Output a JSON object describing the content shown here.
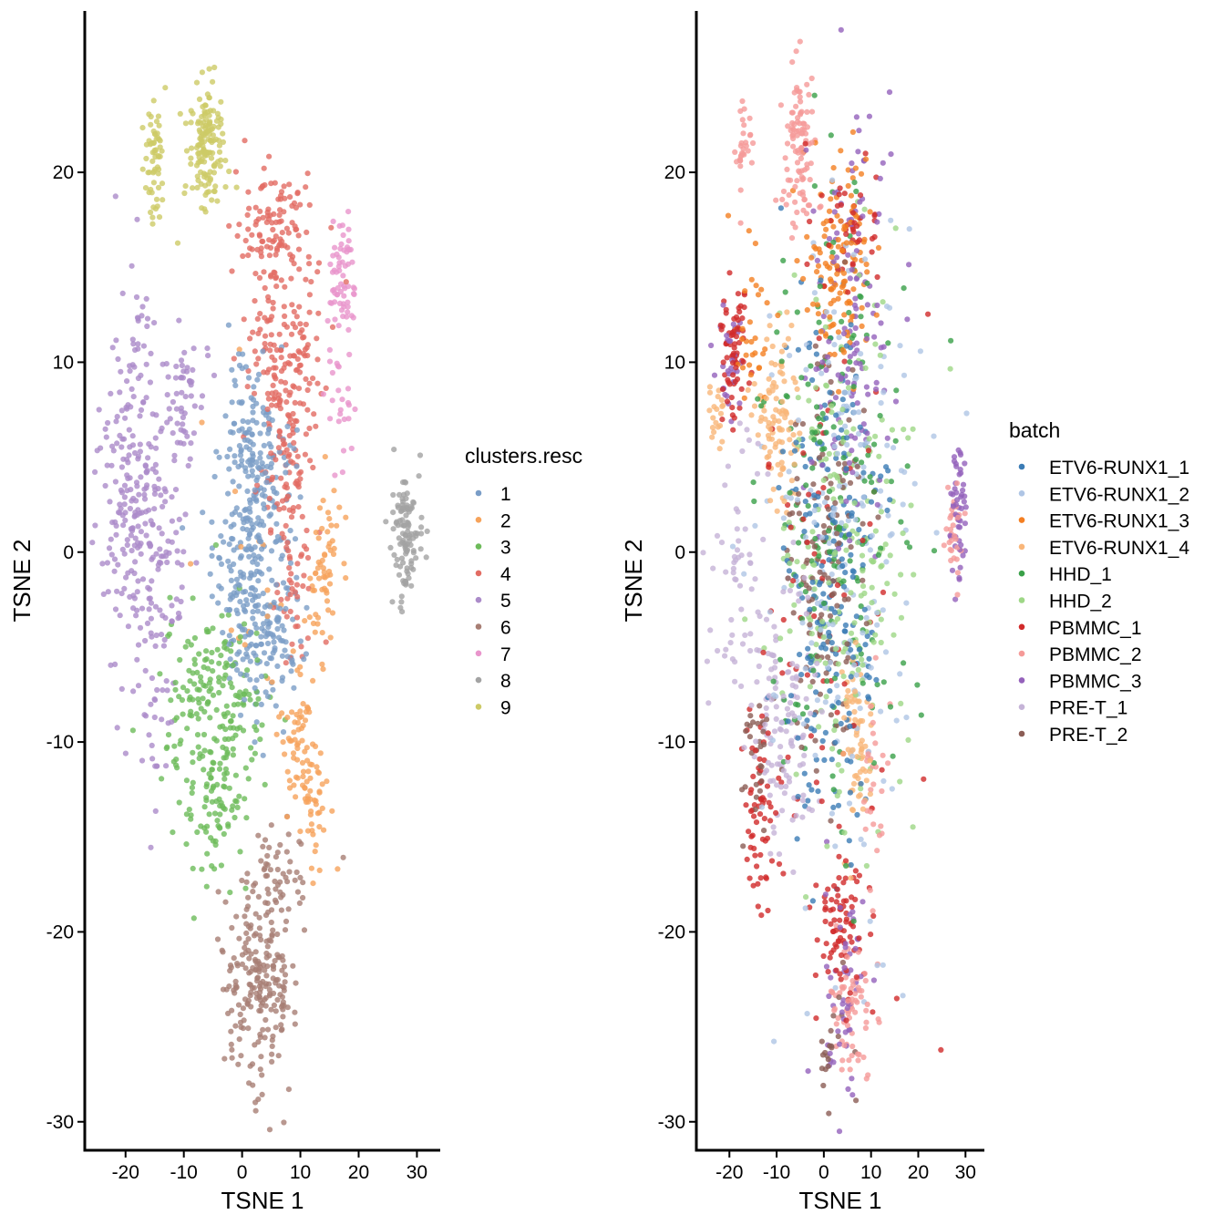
{
  "chart_data": [
    {
      "type": "scatter",
      "title": "",
      "xlabel": "TSNE 1",
      "ylabel": "TSNE 2",
      "xlim": [
        -27,
        34
      ],
      "ylim": [
        -31.5,
        28.5
      ],
      "x_ticks": [
        -20,
        -10,
        0,
        10,
        20,
        30
      ],
      "y_ticks": [
        -30,
        -20,
        -10,
        0,
        10,
        20
      ],
      "grid": false,
      "legend_position": "right",
      "legend_title": "clusters.resc",
      "groups": [
        {
          "name": "1",
          "color": "#7A9DC7",
          "clusters": [
            {
              "x": 2,
              "y": 0,
              "sx": 3.5,
              "sy": 3.5,
              "n": 260
            },
            {
              "x": 2.5,
              "y": 6.5,
              "sx": 2.5,
              "sy": 2,
              "n": 90
            },
            {
              "x": 3.5,
              "y": -5,
              "sx": 3.5,
              "sy": 1.6,
              "n": 80
            }
          ]
        },
        {
          "name": "2",
          "color": "#F6A35B",
          "clusters": [
            {
              "x": 14,
              "y": -1,
              "sx": 1.4,
              "sy": 2.5,
              "n": 60
            },
            {
              "x": 9.5,
              "y": -9.5,
              "sx": 1.5,
              "sy": 2,
              "n": 50
            },
            {
              "x": 12,
              "y": -12.5,
              "sx": 1.5,
              "sy": 2,
              "n": 50
            },
            {
              "x": 3,
              "y": -0.5,
              "sx": 6,
              "sy": 4,
              "n": 20
            }
          ]
        },
        {
          "name": "3",
          "color": "#6DBB5A",
          "clusters": [
            {
              "x": -4.5,
              "y": -8.5,
              "sx": 4.5,
              "sy": 2.8,
              "n": 210
            },
            {
              "x": -5,
              "y": -14.5,
              "sx": 2.5,
              "sy": 1.6,
              "n": 60
            }
          ]
        },
        {
          "name": "4",
          "color": "#E26C63",
          "clusters": [
            {
              "x": 6,
              "y": 17,
              "sx": 3.5,
              "sy": 1.6,
              "n": 110
            },
            {
              "x": 7,
              "y": 11,
              "sx": 3.5,
              "sy": 2.5,
              "n": 140
            },
            {
              "x": 8,
              "y": 4,
              "sx": 2.5,
              "sy": 2.8,
              "n": 100
            },
            {
              "x": 9,
              "y": -2,
              "sx": 1.5,
              "sy": 2,
              "n": 30
            }
          ]
        },
        {
          "name": "5",
          "color": "#AB8BC9",
          "clusters": [
            {
              "x": -19,
              "y": 4,
              "sx": 2.5,
              "sy": 4.5,
              "n": 200
            },
            {
              "x": -14,
              "y": -1,
              "sx": 2.5,
              "sy": 3.5,
              "n": 90
            },
            {
              "x": -10,
              "y": 7.5,
              "sx": 2,
              "sy": 2,
              "n": 60
            },
            {
              "x": -15,
              "y": -10,
              "sx": 1.2,
              "sy": 2,
              "n": 20
            }
          ]
        },
        {
          "name": "6",
          "color": "#A77E74",
          "clusters": [
            {
              "x": 3,
              "y": -22.5,
              "sx": 3,
              "sy": 2.6,
              "n": 220
            },
            {
              "x": 6,
              "y": -17,
              "sx": 3,
              "sy": 1.3,
              "n": 50
            }
          ]
        },
        {
          "name": "7",
          "color": "#E995CC",
          "clusters": [
            {
              "x": 17,
              "y": 14.5,
              "sx": 1.3,
              "sy": 1.4,
              "n": 60
            },
            {
              "x": 17,
              "y": 9,
              "sx": 1.5,
              "sy": 2.5,
              "n": 30
            }
          ]
        },
        {
          "name": "8",
          "color": "#A3A3A3",
          "clusters": [
            {
              "x": 28,
              "y": 1,
              "sx": 1.1,
              "sy": 1.8,
              "n": 110
            }
          ]
        },
        {
          "name": "9",
          "color": "#CDCA66",
          "clusters": [
            {
              "x": -6,
              "y": 21.5,
              "sx": 1.6,
              "sy": 1.7,
              "n": 150
            },
            {
              "x": -15,
              "y": 20.5,
              "sx": 0.9,
              "sy": 1.6,
              "n": 60
            }
          ]
        }
      ]
    },
    {
      "type": "scatter",
      "title": "",
      "xlabel": "TSNE 1",
      "ylabel": "TSNE 2",
      "xlim": [
        -27,
        34
      ],
      "ylim": [
        -31.5,
        28.5
      ],
      "x_ticks": [
        -20,
        -10,
        0,
        10,
        20,
        30
      ],
      "y_ticks": [
        -30,
        -20,
        -10,
        0,
        10,
        20
      ],
      "grid": false,
      "legend_position": "right",
      "legend_title": "batch",
      "groups": [
        {
          "name": "ETV6-RUNX1_1",
          "color": "#3B7CB5",
          "clusters": [
            {
              "x": 2,
              "y": -2,
              "sx": 5,
              "sy": 7,
              "n": 220
            }
          ]
        },
        {
          "name": "ETV6-RUNX1_2",
          "color": "#AFC5E5",
          "clusters": [
            {
              "x": 4,
              "y": 0,
              "sx": 8,
              "sy": 9,
              "n": 200
            }
          ]
        },
        {
          "name": "ETV6-RUNX1_3",
          "color": "#F47F22",
          "clusters": [
            {
              "x": 3,
              "y": 15,
              "sx": 3.5,
              "sy": 3,
              "n": 130
            },
            {
              "x": -15,
              "y": 12,
              "sx": 2,
              "sy": 2,
              "n": 30
            }
          ]
        },
        {
          "name": "ETV6-RUNX1_4",
          "color": "#F9B679",
          "clusters": [
            {
              "x": -10,
              "y": 6.5,
              "sx": 2.5,
              "sy": 2.5,
              "n": 100
            },
            {
              "x": 7,
              "y": -10,
              "sx": 1.5,
              "sy": 2.5,
              "n": 70
            },
            {
              "x": -23,
              "y": 7,
              "sx": 1,
              "sy": 1,
              "n": 20
            }
          ]
        },
        {
          "name": "HHD_1",
          "color": "#39A048",
          "clusters": [
            {
              "x": 2,
              "y": 3,
              "sx": 9,
              "sy": 8,
              "n": 180
            }
          ]
        },
        {
          "name": "HHD_2",
          "color": "#9ED786",
          "clusters": [
            {
              "x": 4,
              "y": 0,
              "sx": 8,
              "sy": 7,
              "n": 200
            }
          ]
        },
        {
          "name": "PBMMC_1",
          "color": "#D12A2A",
          "clusters": [
            {
              "x": -19,
              "y": 10.5,
              "sx": 1.5,
              "sy": 2,
              "n": 70
            },
            {
              "x": 4,
              "y": -19.5,
              "sx": 3,
              "sy": 2,
              "n": 80
            },
            {
              "x": -14,
              "y": -13.5,
              "sx": 1.5,
              "sy": 2.5,
              "n": 60
            },
            {
              "x": 6,
              "y": 17.5,
              "sx": 3,
              "sy": 1.5,
              "n": 40
            },
            {
              "x": 1,
              "y": -2,
              "sx": 9,
              "sy": 9,
              "n": 80
            }
          ]
        },
        {
          "name": "PBMMC_2",
          "color": "#F59A98",
          "clusters": [
            {
              "x": -5,
              "y": 21.5,
              "sx": 1.6,
              "sy": 2.5,
              "n": 100
            },
            {
              "x": 6,
              "y": -24,
              "sx": 2,
              "sy": 2,
              "n": 70
            },
            {
              "x": 27.5,
              "y": 1,
              "sx": 0.9,
              "sy": 1.2,
              "n": 30
            },
            {
              "x": -17,
              "y": 21,
              "sx": 0.8,
              "sy": 1.5,
              "n": 30
            },
            {
              "x": 11,
              "y": -12,
              "sx": 1.5,
              "sy": 2,
              "n": 30
            }
          ]
        },
        {
          "name": "PBMMC_3",
          "color": "#9461BB",
          "clusters": [
            {
              "x": 7,
              "y": 12,
              "sx": 5,
              "sy": 6,
              "n": 130
            },
            {
              "x": 4,
              "y": -23,
              "sx": 2.5,
              "sy": 3,
              "n": 50
            },
            {
              "x": 28.5,
              "y": 2,
              "sx": 0.9,
              "sy": 1.8,
              "n": 50
            },
            {
              "x": -20,
              "y": 10,
              "sx": 1.5,
              "sy": 2,
              "n": 30
            }
          ]
        },
        {
          "name": "PRE-T_1",
          "color": "#C5B3D7",
          "clusters": [
            {
              "x": -8,
              "y": -9,
              "sx": 3.5,
              "sy": 3.5,
              "n": 120
            },
            {
              "x": -18,
              "y": -1,
              "sx": 3,
              "sy": 4,
              "n": 60
            }
          ]
        },
        {
          "name": "PRE-T_2",
          "color": "#8B5D55",
          "clusters": [
            {
              "x": 0,
              "y": 0,
              "sx": 4,
              "sy": 6,
              "n": 130
            },
            {
              "x": 2,
              "y": -26,
              "sx": 1.5,
              "sy": 1.5,
              "n": 20
            },
            {
              "x": -14,
              "y": -11,
              "sx": 1.5,
              "sy": 2,
              "n": 30
            }
          ]
        }
      ]
    }
  ]
}
